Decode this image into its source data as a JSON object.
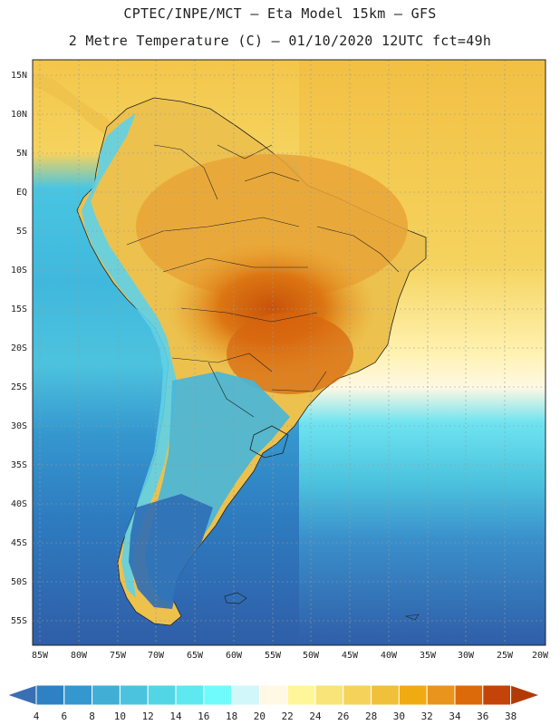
{
  "header": {
    "title_line1": "CPTEC/INPE/MCT –  Eta Model 15km – GFS",
    "title_line2": "2 Metre Temperature (C) – 01/10/2020 12UTC fct=49h"
  },
  "map": {
    "lat_labels": [
      "15N",
      "10N",
      "5N",
      "EQ",
      "5S",
      "10S",
      "15S",
      "20S",
      "25S",
      "30S",
      "35S",
      "40S",
      "45S",
      "50S",
      "55S"
    ],
    "lon_labels": [
      "85W",
      "80W",
      "75W",
      "70W",
      "65W",
      "60W",
      "55W",
      "50W",
      "45W",
      "40W",
      "35W",
      "30W",
      "25W",
      "20W"
    ]
  },
  "colorbar": {
    "labels": [
      "4",
      "6",
      "8",
      "10",
      "12",
      "14",
      "16",
      "18",
      "20",
      "22",
      "24",
      "26",
      "28",
      "30",
      "32",
      "34",
      "36",
      "38"
    ],
    "colors": [
      "#3a6fb4",
      "#2e82c3",
      "#3597cf",
      "#41aed6",
      "#4cc3de",
      "#52d6e6",
      "#5ee8f0",
      "#6ffbfb",
      "#d2f7fb",
      "#fff8e4",
      "#fff69a",
      "#f9e47a",
      "#f5d25a",
      "#f1c03b",
      "#f1ab12",
      "#e9941d",
      "#dc6a0a",
      "#c44308",
      "#b33a07"
    ]
  },
  "colors": {
    "tropics": "#f2c043",
    "ocean_warm": "#f5d35e",
    "ocean_cold": "#2f5ea8"
  }
}
